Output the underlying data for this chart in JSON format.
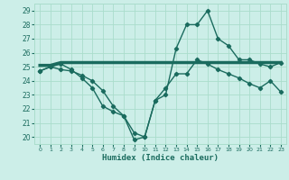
{
  "title": "",
  "xlabel": "Humidex (Indice chaleur)",
  "bg_color": "#cceee8",
  "grid_color": "#aaddcc",
  "line_color": "#1a6b5e",
  "x": [
    0,
    1,
    2,
    3,
    4,
    5,
    6,
    7,
    8,
    9,
    10,
    11,
    12,
    13,
    14,
    15,
    16,
    17,
    18,
    19,
    20,
    21,
    22,
    23
  ],
  "curve1": [
    25.1,
    25.1,
    25.3,
    25.3,
    25.3,
    25.3,
    25.3,
    25.3,
    25.3,
    25.3,
    25.3,
    25.3,
    25.3,
    25.3,
    25.3,
    25.3,
    25.3,
    25.3,
    25.3,
    25.3,
    25.3,
    25.3,
    25.3,
    25.3
  ],
  "curve2": [
    24.7,
    25.0,
    25.2,
    24.8,
    24.2,
    23.5,
    22.2,
    21.8,
    21.5,
    20.3,
    20.0,
    22.6,
    23.0,
    26.3,
    28.0,
    28.0,
    29.0,
    27.0,
    26.5,
    25.5,
    25.5,
    25.2,
    25.0,
    25.3
  ],
  "curve3": [
    24.7,
    25.0,
    24.8,
    24.7,
    24.4,
    24.0,
    23.3,
    22.2,
    21.5,
    19.8,
    20.0,
    22.6,
    23.5,
    24.5,
    24.5,
    25.5,
    25.2,
    24.8,
    24.5,
    24.2,
    23.8,
    23.5,
    24.0,
    23.2
  ],
  "ylim": [
    19.5,
    29.5
  ],
  "yticks": [
    20,
    21,
    22,
    23,
    24,
    25,
    26,
    27,
    28,
    29
  ],
  "xticks": [
    0,
    1,
    2,
    3,
    4,
    5,
    6,
    7,
    8,
    9,
    10,
    11,
    12,
    13,
    14,
    15,
    16,
    17,
    18,
    19,
    20,
    21,
    22,
    23
  ]
}
